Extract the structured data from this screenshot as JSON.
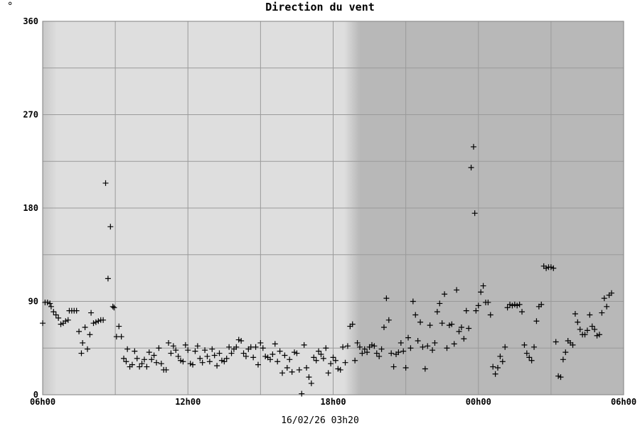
{
  "unit_label": "°",
  "chart_data": {
    "type": "scatter",
    "title": "Direction du vent",
    "footer": "16/02/26 03h20",
    "xlabel": "",
    "ylabel": "",
    "ylim": [
      0,
      360
    ],
    "yticks": [
      0,
      90,
      180,
      270,
      360
    ],
    "xlim_hours": [
      6,
      30
    ],
    "x_tick_hours": [
      6,
      12,
      18,
      24,
      30
    ],
    "xtick_labels": [
      "06h00",
      "12h00",
      "18h00",
      "00h00",
      "06h00"
    ],
    "x_unit": "hours since 16/02/26 00h00",
    "night_start_hour": 19.1,
    "grid": true,
    "marker": "+",
    "colors": {
      "day_bg": "#dedede",
      "night_bg": "#b8b8b8",
      "grid": "#9a9a9a",
      "marker": "#000000"
    },
    "points": [
      [
        6.0,
        69
      ],
      [
        6.1,
        89
      ],
      [
        6.2,
        89
      ],
      [
        6.3,
        88
      ],
      [
        6.35,
        85
      ],
      [
        6.45,
        80
      ],
      [
        6.55,
        77
      ],
      [
        6.65,
        74
      ],
      [
        6.75,
        68
      ],
      [
        6.85,
        69
      ],
      [
        6.95,
        71
      ],
      [
        7.05,
        72
      ],
      [
        7.1,
        81
      ],
      [
        7.2,
        81
      ],
      [
        7.3,
        81
      ],
      [
        7.4,
        81
      ],
      [
        7.5,
        61
      ],
      [
        7.6,
        40
      ],
      [
        7.65,
        50
      ],
      [
        7.75,
        65
      ],
      [
        7.85,
        44
      ],
      [
        7.95,
        58
      ],
      [
        8.0,
        79
      ],
      [
        8.1,
        69
      ],
      [
        8.2,
        70
      ],
      [
        8.3,
        71
      ],
      [
        8.4,
        72
      ],
      [
        8.5,
        72
      ],
      [
        8.6,
        204
      ],
      [
        8.7,
        112
      ],
      [
        8.8,
        162
      ],
      [
        8.9,
        85
      ],
      [
        8.95,
        84
      ],
      [
        9.05,
        56
      ],
      [
        9.15,
        66
      ],
      [
        9.25,
        56
      ],
      [
        9.35,
        35
      ],
      [
        9.45,
        32
      ],
      [
        9.5,
        44
      ],
      [
        9.6,
        27
      ],
      [
        9.7,
        29
      ],
      [
        9.8,
        42
      ],
      [
        9.9,
        35
      ],
      [
        10.0,
        27
      ],
      [
        10.1,
        30
      ],
      [
        10.2,
        34
      ],
      [
        10.3,
        27
      ],
      [
        10.4,
        41
      ],
      [
        10.5,
        34
      ],
      [
        10.6,
        38
      ],
      [
        10.7,
        31
      ],
      [
        10.8,
        45
      ],
      [
        10.9,
        30
      ],
      [
        11.0,
        24
      ],
      [
        11.1,
        24
      ],
      [
        11.2,
        50
      ],
      [
        11.3,
        40
      ],
      [
        11.4,
        47
      ],
      [
        11.5,
        43
      ],
      [
        11.6,
        37
      ],
      [
        11.7,
        33
      ],
      [
        11.8,
        32
      ],
      [
        11.9,
        48
      ],
      [
        12.0,
        43
      ],
      [
        12.1,
        30
      ],
      [
        12.2,
        29
      ],
      [
        12.3,
        42
      ],
      [
        12.4,
        47
      ],
      [
        12.5,
        35
      ],
      [
        12.6,
        31
      ],
      [
        12.7,
        43
      ],
      [
        12.8,
        37
      ],
      [
        12.9,
        32
      ],
      [
        13.0,
        44
      ],
      [
        13.1,
        38
      ],
      [
        13.2,
        28
      ],
      [
        13.3,
        40
      ],
      [
        13.4,
        33
      ],
      [
        13.5,
        32
      ],
      [
        13.6,
        35
      ],
      [
        13.7,
        46
      ],
      [
        13.8,
        40
      ],
      [
        13.9,
        44
      ],
      [
        14.0,
        46
      ],
      [
        14.1,
        53
      ],
      [
        14.2,
        52
      ],
      [
        14.3,
        40
      ],
      [
        14.4,
        37
      ],
      [
        14.5,
        44
      ],
      [
        14.6,
        46
      ],
      [
        14.7,
        36
      ],
      [
        14.8,
        46
      ],
      [
        14.9,
        29
      ],
      [
        15.0,
        50
      ],
      [
        15.1,
        45
      ],
      [
        15.2,
        37
      ],
      [
        15.3,
        36
      ],
      [
        15.4,
        34
      ],
      [
        15.5,
        39
      ],
      [
        15.6,
        49
      ],
      [
        15.7,
        32
      ],
      [
        15.8,
        42
      ],
      [
        15.9,
        21
      ],
      [
        16.0,
        38
      ],
      [
        16.1,
        26
      ],
      [
        16.2,
        34
      ],
      [
        16.3,
        22
      ],
      [
        16.4,
        41
      ],
      [
        16.5,
        40
      ],
      [
        16.6,
        24
      ],
      [
        16.7,
        1
      ],
      [
        16.8,
        48
      ],
      [
        16.9,
        26
      ],
      [
        17.0,
        17
      ],
      [
        17.1,
        11
      ],
      [
        17.2,
        36
      ],
      [
        17.3,
        33
      ],
      [
        17.4,
        42
      ],
      [
        17.5,
        39
      ],
      [
        17.6,
        35
      ],
      [
        17.7,
        45
      ],
      [
        17.8,
        21
      ],
      [
        17.9,
        30
      ],
      [
        18.0,
        36
      ],
      [
        18.1,
        33
      ],
      [
        18.2,
        25
      ],
      [
        18.3,
        24
      ],
      [
        18.4,
        46
      ],
      [
        18.5,
        31
      ],
      [
        18.6,
        47
      ],
      [
        18.7,
        66
      ],
      [
        18.8,
        68
      ],
      [
        18.9,
        33
      ],
      [
        19.0,
        50
      ],
      [
        19.1,
        46
      ],
      [
        19.2,
        40
      ],
      [
        19.3,
        44
      ],
      [
        19.4,
        41
      ],
      [
        19.5,
        46
      ],
      [
        19.6,
        48
      ],
      [
        19.7,
        47
      ],
      [
        19.8,
        40
      ],
      [
        19.9,
        37
      ],
      [
        20.0,
        44
      ],
      [
        20.1,
        65
      ],
      [
        20.2,
        93
      ],
      [
        20.3,
        72
      ],
      [
        20.4,
        40
      ],
      [
        20.5,
        27
      ],
      [
        20.6,
        39
      ],
      [
        20.7,
        41
      ],
      [
        20.8,
        50
      ],
      [
        20.9,
        42
      ],
      [
        21.0,
        26
      ],
      [
        21.1,
        55
      ],
      [
        21.2,
        45
      ],
      [
        21.3,
        90
      ],
      [
        21.4,
        77
      ],
      [
        21.5,
        52
      ],
      [
        21.6,
        70
      ],
      [
        21.7,
        46
      ],
      [
        21.8,
        25
      ],
      [
        21.9,
        47
      ],
      [
        22.0,
        67
      ],
      [
        22.1,
        43
      ],
      [
        22.2,
        50
      ],
      [
        22.3,
        80
      ],
      [
        22.4,
        88
      ],
      [
        22.5,
        69
      ],
      [
        22.6,
        97
      ],
      [
        22.7,
        45
      ],
      [
        22.8,
        67
      ],
      [
        22.9,
        68
      ],
      [
        23.0,
        49
      ],
      [
        23.1,
        101
      ],
      [
        23.2,
        61
      ],
      [
        23.3,
        65
      ],
      [
        23.4,
        54
      ],
      [
        23.5,
        81
      ],
      [
        23.6,
        64
      ],
      [
        23.7,
        219
      ],
      [
        23.8,
        239
      ],
      [
        23.85,
        175
      ],
      [
        23.9,
        81
      ],
      [
        24.0,
        86
      ],
      [
        24.1,
        99
      ],
      [
        24.2,
        105
      ],
      [
        24.3,
        89
      ],
      [
        24.4,
        89
      ],
      [
        24.5,
        77
      ],
      [
        24.6,
        27
      ],
      [
        24.7,
        20
      ],
      [
        24.8,
        26
      ],
      [
        24.9,
        37
      ],
      [
        25.0,
        32
      ],
      [
        25.1,
        46
      ],
      [
        25.2,
        84
      ],
      [
        25.3,
        87
      ],
      [
        25.4,
        86
      ],
      [
        25.5,
        87
      ],
      [
        25.6,
        86
      ],
      [
        25.7,
        87
      ],
      [
        25.8,
        80
      ],
      [
        25.9,
        48
      ],
      [
        26.0,
        40
      ],
      [
        26.1,
        36
      ],
      [
        26.2,
        33
      ],
      [
        26.3,
        46
      ],
      [
        26.4,
        71
      ],
      [
        26.5,
        85
      ],
      [
        26.6,
        87
      ],
      [
        26.7,
        124
      ],
      [
        26.8,
        122
      ],
      [
        26.9,
        123
      ],
      [
        27.0,
        123
      ],
      [
        27.1,
        122
      ],
      [
        27.2,
        51
      ],
      [
        27.3,
        18
      ],
      [
        27.4,
        17
      ],
      [
        27.5,
        34
      ],
      [
        27.6,
        41
      ],
      [
        27.7,
        52
      ],
      [
        27.8,
        50
      ],
      [
        27.9,
        48
      ],
      [
        28.0,
        78
      ],
      [
        28.1,
        70
      ],
      [
        28.2,
        63
      ],
      [
        28.3,
        58
      ],
      [
        28.4,
        58
      ],
      [
        28.5,
        62
      ],
      [
        28.6,
        77
      ],
      [
        28.7,
        66
      ],
      [
        28.8,
        63
      ],
      [
        28.9,
        57
      ],
      [
        29.0,
        58
      ],
      [
        29.1,
        79
      ],
      [
        29.2,
        93
      ],
      [
        29.3,
        85
      ],
      [
        29.4,
        96
      ],
      [
        29.5,
        98
      ]
    ]
  }
}
